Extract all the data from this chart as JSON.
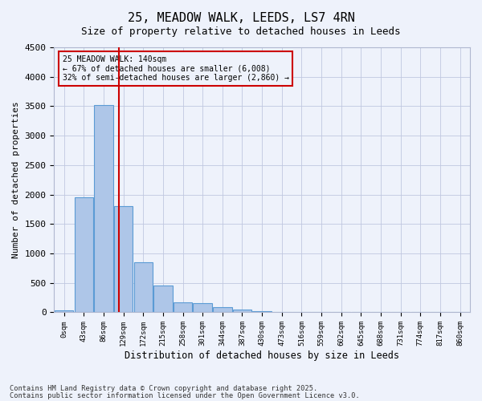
{
  "title1": "25, MEADOW WALK, LEEDS, LS7 4RN",
  "title2": "Size of property relative to detached houses in Leeds",
  "xlabel": "Distribution of detached houses by size in Leeds",
  "ylabel": "Number of detached properties",
  "bin_labels": [
    "0sqm",
    "43sqm",
    "86sqm",
    "129sqm",
    "172sqm",
    "215sqm",
    "258sqm",
    "301sqm",
    "344sqm",
    "387sqm",
    "430sqm",
    "473sqm",
    "516sqm",
    "559sqm",
    "602sqm",
    "645sqm",
    "688sqm",
    "731sqm",
    "774sqm",
    "817sqm",
    "860sqm"
  ],
  "bar_values": [
    40,
    1950,
    3520,
    1810,
    850,
    450,
    165,
    160,
    90,
    50,
    25,
    0,
    0,
    0,
    0,
    0,
    0,
    0,
    0,
    0,
    0
  ],
  "bar_color": "#aec6e8",
  "bar_edge_color": "#5b9bd5",
  "ylim": [
    0,
    4500
  ],
  "yticks": [
    0,
    500,
    1000,
    1500,
    2000,
    2500,
    3000,
    3500,
    4000,
    4500
  ],
  "vline_color": "#cc0000",
  "annotation_text": "25 MEADOW WALK: 140sqm\n← 67% of detached houses are smaller (6,008)\n32% of semi-detached houses are larger (2,860) →",
  "annotation_box_color": "#cc0000",
  "background_color": "#eef2fb",
  "grid_color": "#c0c8e0",
  "footer1": "Contains HM Land Registry data © Crown copyright and database right 2025.",
  "footer2": "Contains public sector information licensed under the Open Government Licence v3.0."
}
